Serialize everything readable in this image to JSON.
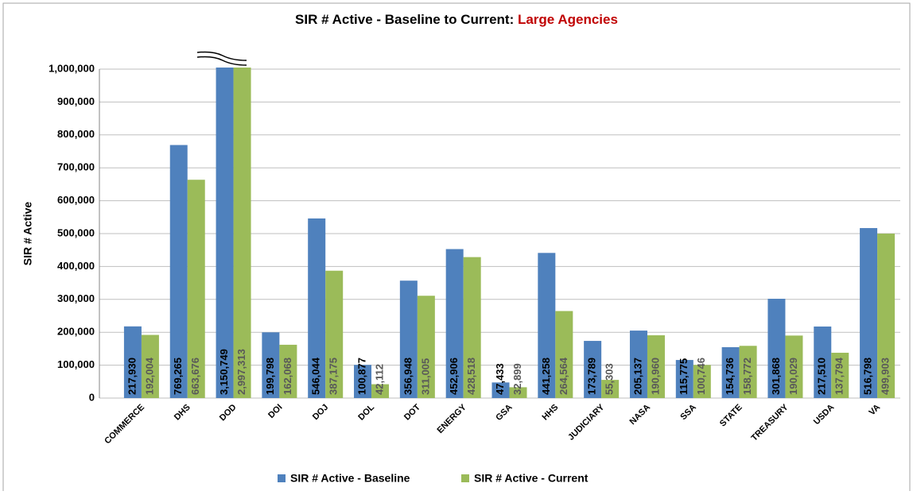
{
  "chart_data": {
    "type": "bar",
    "title": "SIR # Active - Baseline to Current: ",
    "title_highlight": "Large Agencies",
    "y_label": "SIR # Active",
    "categories": [
      "COMMERCE",
      "DHS",
      "DOD",
      "DOI",
      "DOJ",
      "DOL",
      "DOT",
      "ENERGY",
      "GSA",
      "HHS",
      "JUDICIARY",
      "NASA",
      "SSA",
      "STATE",
      "TREASURY",
      "USDA",
      "VA"
    ],
    "series": [
      {
        "name": "SIR # Active - Baseline",
        "color": "#4f81bd",
        "label_color": "#000000",
        "values": [
          217930,
          769265,
          3150749,
          199798,
          546044,
          100877,
          356948,
          452906,
          47433,
          441258,
          173789,
          205137,
          115775,
          154736,
          301868,
          217510,
          516798
        ],
        "value_labels": [
          "217,930",
          "769,265",
          "3,150,749",
          "199,798",
          "546,044",
          "100,877",
          "356,948",
          "452,906",
          "47,433",
          "441,258",
          "173,789",
          "205,137",
          "115,775",
          "154,736",
          "301,868",
          "217,510",
          "516,798"
        ]
      },
      {
        "name": "SIR # Active - Current",
        "color": "#9bbb59",
        "label_color": "#595959",
        "values": [
          192004,
          663676,
          2997313,
          162068,
          387175,
          42112,
          311005,
          428518,
          32899,
          264564,
          55303,
          190960,
          100746,
          158772,
          190029,
          137794,
          499903
        ],
        "value_labels": [
          "192,004",
          "663,676",
          "2,997,313",
          "162,068",
          "387,175",
          "42,112",
          "311,005",
          "428,518",
          "32,899",
          "264,564",
          "55,303",
          "190,960",
          "100,746",
          "158,772",
          "190,029",
          "137,794",
          "499,903"
        ]
      }
    ],
    "ylim": [
      0,
      1000000
    ],
    "yticks": [
      0,
      {
        "value": 100000,
        "label": "100,000"
      },
      {
        "value": 200000,
        "label": "200,000"
      },
      {
        "value": 300000,
        "label": "300,000"
      },
      {
        "value": 400000,
        "label": "400,000"
      },
      {
        "value": 500000,
        "label": "500,000"
      },
      {
        "value": 600000,
        "label": "600,000"
      },
      {
        "value": 700000,
        "label": "700,000"
      },
      {
        "value": 800000,
        "label": "800,000"
      },
      {
        "value": 900000,
        "label": "900,000"
      },
      {
        "value": 1000000,
        "label": "1,000,000"
      }
    ],
    "grid": true,
    "legend": "bottom"
  }
}
